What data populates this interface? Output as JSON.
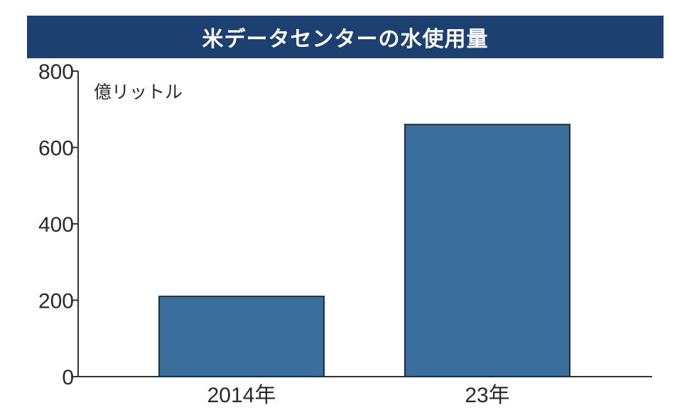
{
  "chart_data": {
    "type": "bar",
    "title": "米データセンターの水使用量",
    "unit": "億リットル",
    "categories": [
      "2014年",
      "23年"
    ],
    "values": [
      210,
      660
    ],
    "ylim": [
      0,
      800
    ],
    "yticks": [
      0,
      200,
      400,
      600,
      800
    ],
    "grid": false,
    "colors": {
      "bar": "#3a6e9c",
      "bar_edge": "#1d2f44",
      "title_bg": "#1c4170",
      "title_text": "#ffffff",
      "axis": "#333333"
    }
  }
}
